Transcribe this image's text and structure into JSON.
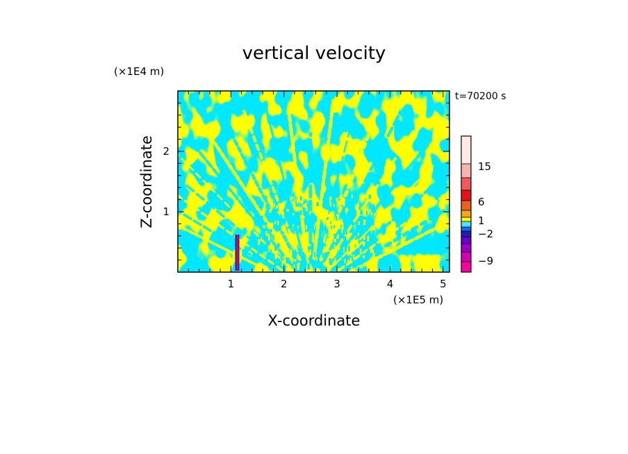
{
  "chart_data": {
    "type": "heatmap",
    "title": "vertical velocity",
    "time_label": "t=70200 s",
    "xlabel": "X-coordinate",
    "ylabel": "Z-coordinate",
    "x_unit": "(×1E5 m)",
    "y_unit": "(×1E4 m)",
    "xlim": [
      0,
      5.12
    ],
    "ylim": [
      0,
      3.0
    ],
    "x_ticks": [
      "1",
      "2",
      "3",
      "4",
      "5"
    ],
    "y_ticks": [
      "1",
      "2"
    ],
    "colorbar": {
      "labels": [
        "15",
        "6",
        "1",
        "−2",
        "−9"
      ],
      "colors": [
        "#ffeae6",
        "#f5b5ad",
        "#f05a5a",
        "#e8101a",
        "#e8641e",
        "#f3a71e",
        "#ffff00",
        "#4ce7ff",
        "#1a64ff",
        "#2020b0",
        "#6a00cc",
        "#9a00cc",
        "#d400b4",
        "#ff00a0"
      ]
    },
    "field_colors": {
      "positive": "#ffff00",
      "negative": "#00e8ff"
    }
  }
}
